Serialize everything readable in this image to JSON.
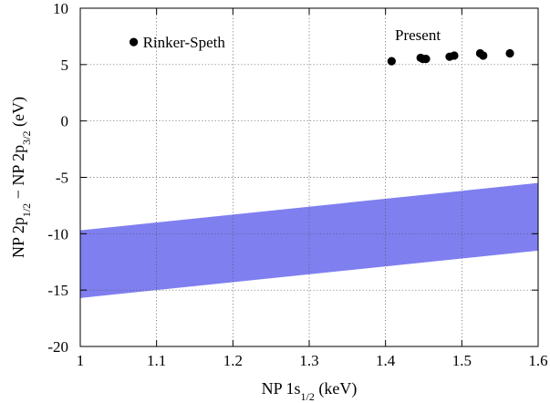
{
  "chart_data": {
    "type": "scatter",
    "xlabel": {
      "main": "NP 1s",
      "sub": "1/2",
      "unit": " (keV)"
    },
    "ylabel": {
      "p1": "NP 2p",
      "s1": "1/2",
      "mid": " − NP 2p",
      "s2": "3/2",
      "unit": " (eV)"
    },
    "xlim": [
      1,
      1.6
    ],
    "ylim": [
      -20,
      10
    ],
    "xticks": [
      1,
      1.1,
      1.2,
      1.3,
      1.4,
      1.5,
      1.6
    ],
    "xtick_labels": [
      "1",
      "1.1",
      "1.2",
      "1.3",
      "1.4",
      "1.5",
      "1.6"
    ],
    "yticks": [
      -20,
      -15,
      -10,
      -5,
      0,
      5,
      10
    ],
    "ytick_labels": [
      "-20",
      "-15",
      "-10",
      "-5",
      "0",
      "5",
      "10"
    ],
    "grid": true,
    "band": {
      "color": "#7f7ff0",
      "x": [
        1,
        1.6
      ],
      "lower": [
        -15.7,
        -11.5
      ],
      "upper": [
        -9.7,
        -5.5
      ]
    },
    "series": [
      {
        "name": "Rinker-Speth",
        "x": [
          1.07
        ],
        "y": [
          7.0
        ]
      },
      {
        "name": "Present",
        "x": [
          1.408,
          1.446,
          1.449,
          1.453,
          1.484,
          1.49,
          1.524,
          1.528,
          1.563
        ],
        "y": [
          5.3,
          5.6,
          5.5,
          5.5,
          5.7,
          5.8,
          6.0,
          5.8,
          6.0
        ]
      }
    ],
    "annotations": [
      "Rinker-Speth",
      "Present"
    ],
    "marker_color": "#000000"
  }
}
